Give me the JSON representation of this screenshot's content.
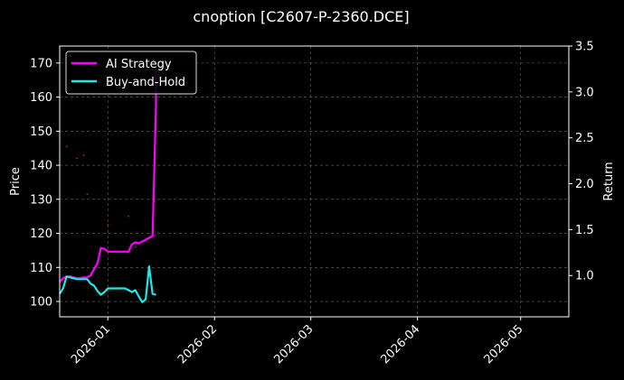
{
  "chart_data": {
    "type": "line",
    "title": "cnoption [C2607-P-2360.DCE]",
    "xlabel": "",
    "ylabel": "Price",
    "ylabel_right": "Return",
    "x_range": [
      "2025-12-18",
      "2026-05-15"
    ],
    "xticks": [
      "2026-01",
      "2026-02",
      "2026-03",
      "2026-04",
      "2026-05"
    ],
    "ylim": [
      95.5,
      175
    ],
    "yticks": [
      100,
      110,
      120,
      130,
      140,
      150,
      160,
      170
    ],
    "ylim_right": [
      0.55,
      3.5
    ],
    "yticks_right": [
      "1.0",
      "1.5",
      "2.0",
      "2.5",
      "3.0",
      "3.5"
    ],
    "grid": true,
    "legend_position": "upper left",
    "series": [
      {
        "name": "AI Strategy",
        "axis": "right",
        "color": "#ff00ff",
        "points": [
          [
            "2025-12-18",
            0.93
          ],
          [
            "2025-12-19",
            0.97
          ],
          [
            "2025-12-20",
            0.99
          ],
          [
            "2025-12-21",
            0.99
          ],
          [
            "2025-12-22",
            0.98
          ],
          [
            "2025-12-23",
            0.97
          ],
          [
            "2025-12-24",
            0.97
          ],
          [
            "2025-12-25",
            0.98
          ],
          [
            "2025-12-26",
            0.98
          ],
          [
            "2025-12-27",
            1.0
          ],
          [
            "2025-12-28",
            1.07
          ],
          [
            "2025-12-29",
            1.13
          ],
          [
            "2025-12-30",
            1.3
          ],
          [
            "2025-12-31",
            1.29
          ],
          [
            "2026-01-01",
            1.26
          ],
          [
            "2026-01-02",
            1.26
          ],
          [
            "2026-01-03",
            1.26
          ],
          [
            "2026-01-04",
            1.26
          ],
          [
            "2026-01-05",
            1.26
          ],
          [
            "2026-01-06",
            1.26
          ],
          [
            "2026-01-07",
            1.26
          ],
          [
            "2026-01-08",
            1.34
          ],
          [
            "2026-01-09",
            1.36
          ],
          [
            "2026-01-10",
            1.35
          ],
          [
            "2026-01-11",
            1.37
          ],
          [
            "2026-01-12",
            1.39
          ],
          [
            "2026-01-13",
            1.41
          ],
          [
            "2026-01-14",
            1.43
          ],
          [
            "2026-01-15",
            2.84
          ],
          [
            "2026-01-15",
            3.27
          ]
        ]
      },
      {
        "name": "Buy-and-Hold",
        "axis": "right",
        "color": "#1ee8e8",
        "points": [
          [
            "2025-12-18",
            0.8
          ],
          [
            "2025-12-19",
            0.86
          ],
          [
            "2025-12-20",
            0.99
          ],
          [
            "2025-12-21",
            0.98
          ],
          [
            "2025-12-22",
            0.97
          ],
          [
            "2025-12-23",
            0.96
          ],
          [
            "2025-12-24",
            0.96
          ],
          [
            "2025-12-25",
            0.96
          ],
          [
            "2025-12-26",
            0.96
          ],
          [
            "2025-12-27",
            0.91
          ],
          [
            "2025-12-28",
            0.89
          ],
          [
            "2025-12-29",
            0.83
          ],
          [
            "2025-12-30",
            0.79
          ],
          [
            "2025-12-31",
            0.82
          ],
          [
            "2026-01-01",
            0.86
          ],
          [
            "2026-01-02",
            0.86
          ],
          [
            "2026-01-03",
            0.86
          ],
          [
            "2026-01-04",
            0.86
          ],
          [
            "2026-01-05",
            0.86
          ],
          [
            "2026-01-06",
            0.86
          ],
          [
            "2026-01-07",
            0.84
          ],
          [
            "2026-01-08",
            0.82
          ],
          [
            "2026-01-09",
            0.84
          ],
          [
            "2026-01-10",
            0.77
          ],
          [
            "2026-01-11",
            0.71
          ],
          [
            "2026-01-12",
            0.74
          ],
          [
            "2026-01-13",
            1.1
          ],
          [
            "2026-01-14",
            0.8
          ],
          [
            "2026-01-15",
            0.79
          ]
        ]
      },
      {
        "name": "",
        "axis": "left",
        "type": "scatter",
        "color": "#ff1a4a",
        "points": [
          [
            "2025-12-20",
            145.5
          ],
          [
            "2025-12-23",
            142.0
          ],
          [
            "2025-12-25",
            143.0
          ],
          [
            "2025-12-26",
            131.5
          ],
          [
            "2026-01-01",
            122.5
          ],
          [
            "2026-01-07",
            125.0
          ],
          [
            "2026-01-09",
            116.0
          ]
        ]
      }
    ]
  }
}
